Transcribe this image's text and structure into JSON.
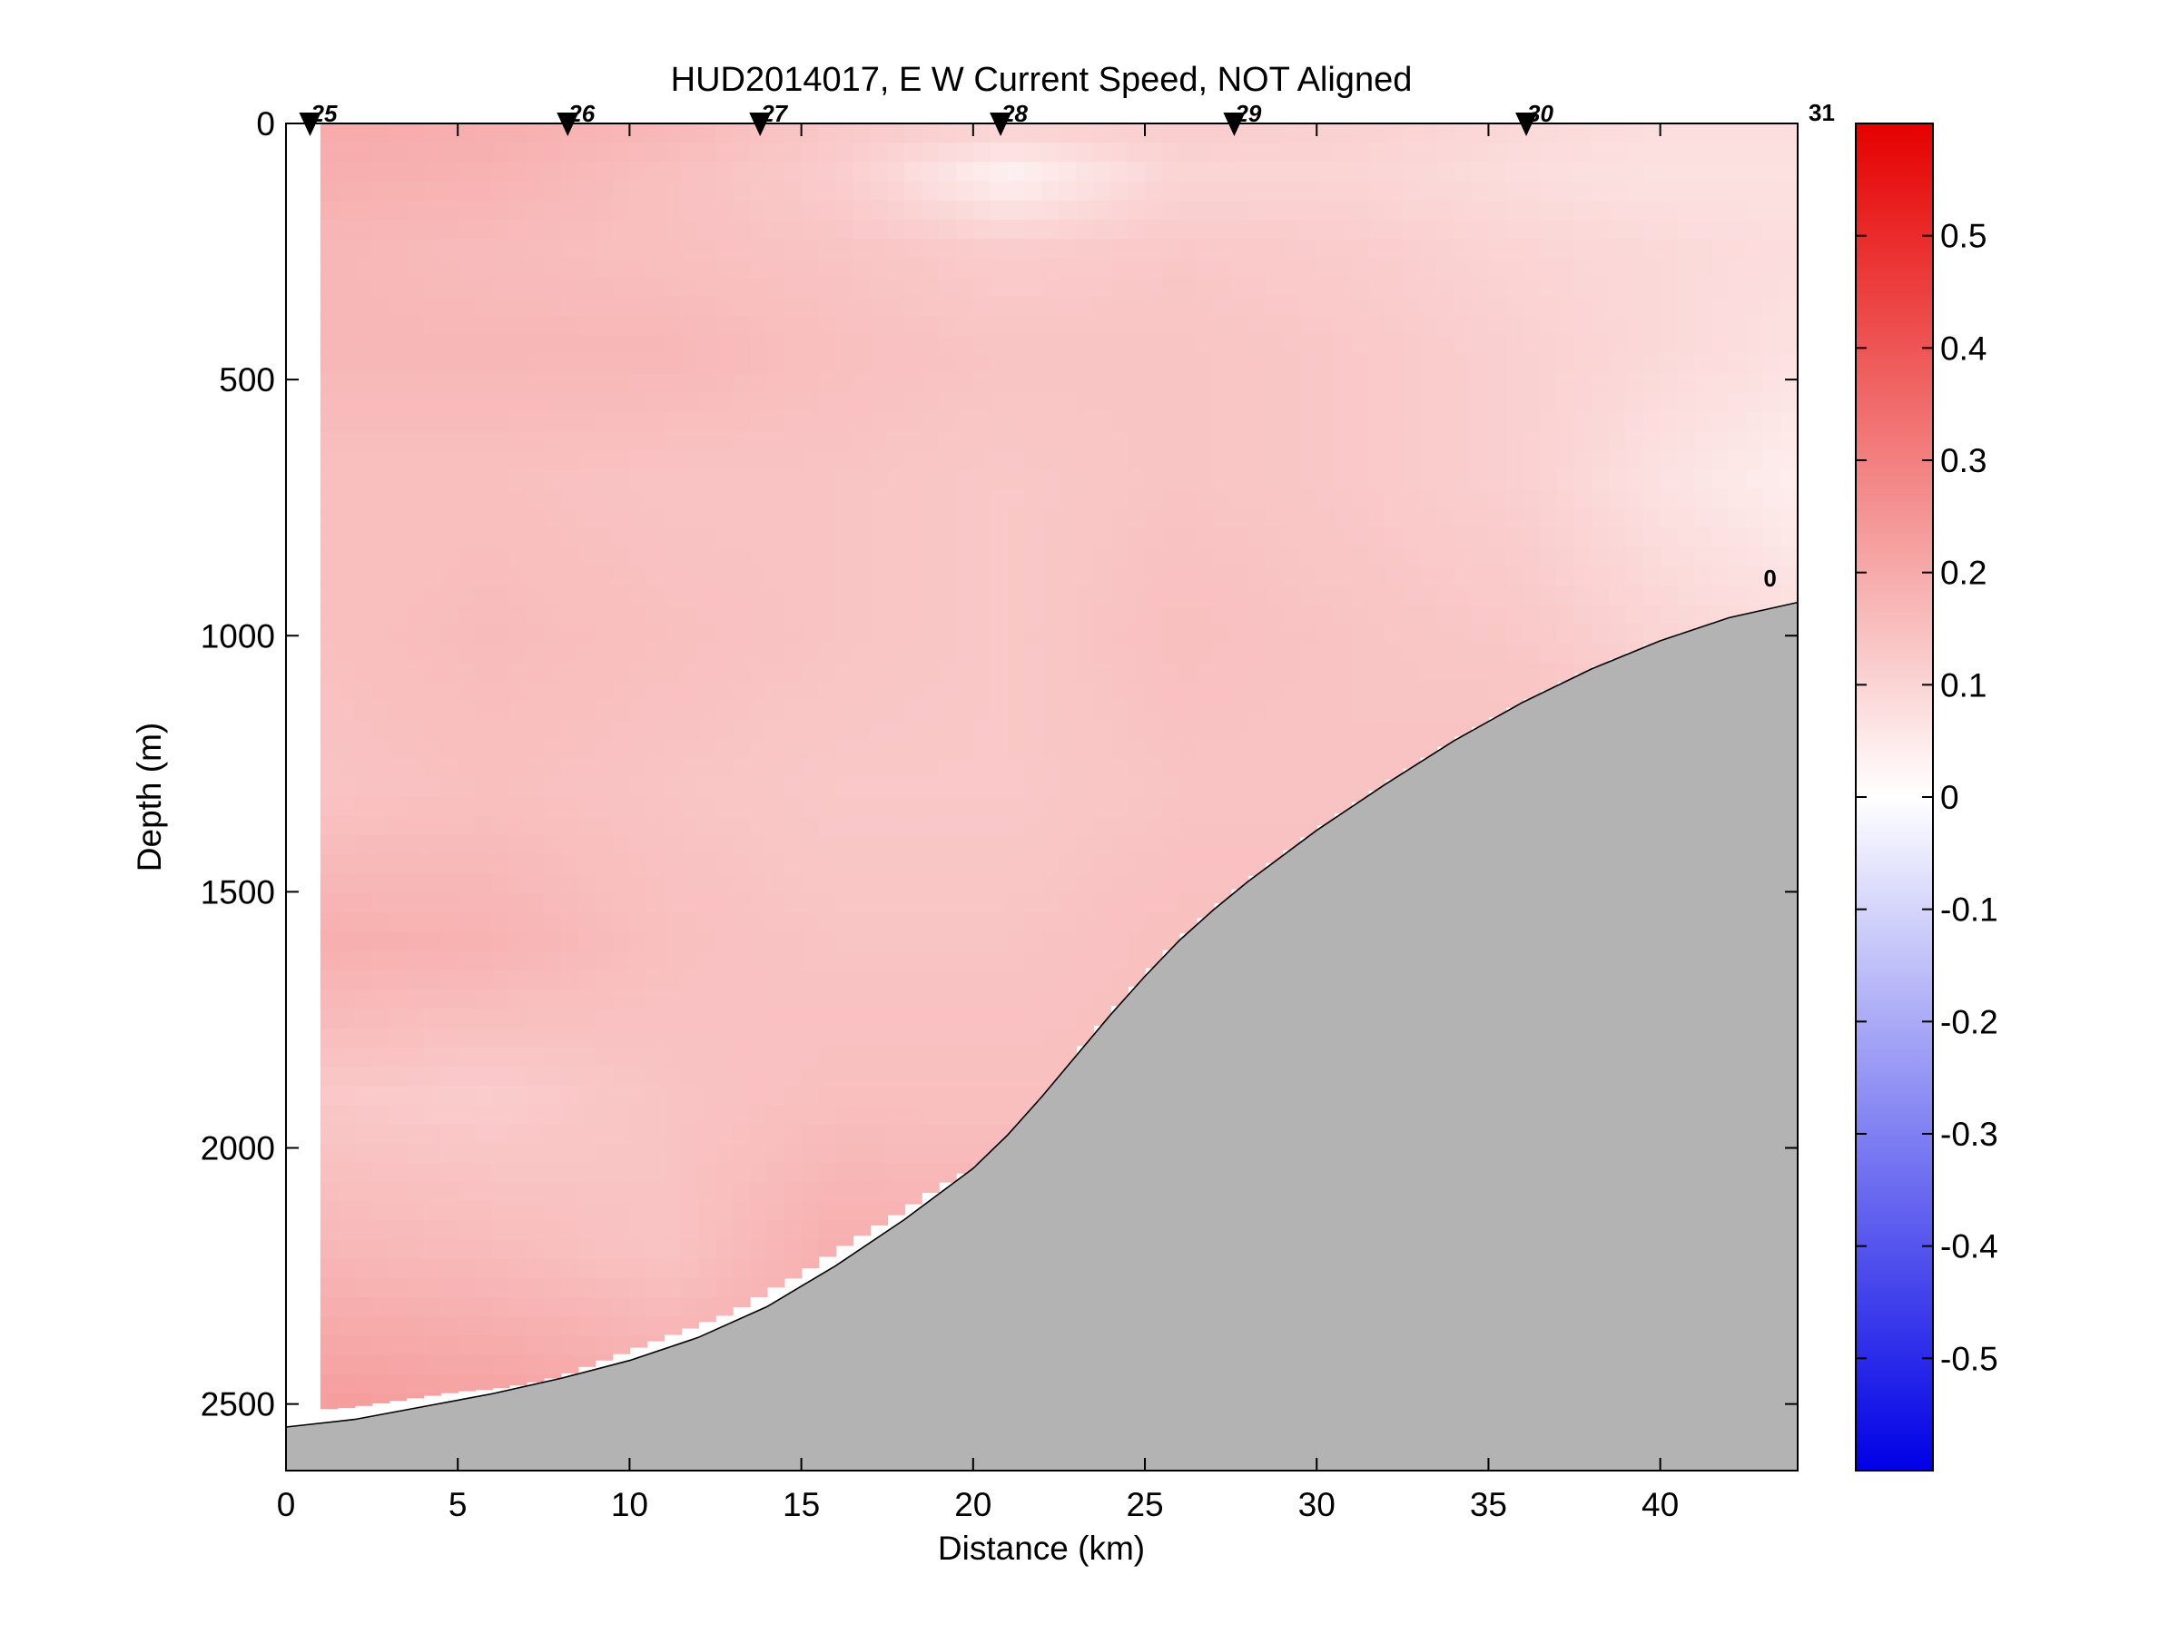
{
  "chart_data": {
    "type": "heatmap",
    "title": "HUD2014017, E W Current Speed, NOT Aligned",
    "xlabel": "Distance (km)",
    "ylabel": "Depth (m)",
    "xlim": [
      0,
      44
    ],
    "ylim": [
      2630,
      0
    ],
    "x_ticks": [
      0,
      5,
      10,
      15,
      20,
      25,
      30,
      35,
      40
    ],
    "y_ticks": [
      0,
      500,
      1000,
      1500,
      2000,
      2500
    ],
    "colorbar": {
      "range": [
        -0.6,
        0.6
      ],
      "ticks": [
        -0.5,
        -0.4,
        -0.3,
        -0.2,
        -0.1,
        0,
        0.1,
        0.2,
        0.3,
        0.4,
        0.5
      ],
      "tick_labels": [
        "-0.5",
        "-0.4",
        "-0.3",
        "-0.2",
        "-0.1",
        "0",
        "0.1",
        "0.2",
        "0.3",
        "0.4",
        "0.5"
      ],
      "colormap": "blue-white-red",
      "low_color": "#0000e6",
      "mid_color": "#ffffff",
      "high_color": "#e60000"
    },
    "stations": [
      {
        "label": "25",
        "x": 0.7
      },
      {
        "label": "26",
        "x": 8.2
      },
      {
        "label": "27",
        "x": 13.8
      },
      {
        "label": "28",
        "x": 20.8
      },
      {
        "label": "29",
        "x": 27.6
      },
      {
        "label": "30",
        "x": 36.1
      }
    ],
    "end_labels": [
      {
        "label": "31",
        "x": 44,
        "depth": 0
      },
      {
        "label": "0",
        "x": 43.6,
        "depth": 890
      }
    ],
    "bathymetry": {
      "distance": [
        0,
        2,
        4,
        6,
        8,
        10,
        12,
        14,
        16,
        18,
        20,
        21,
        22,
        23,
        24,
        25,
        26,
        27,
        28,
        30,
        32,
        34,
        36,
        38,
        40,
        42,
        44
      ],
      "depth": [
        2545,
        2530,
        2505,
        2480,
        2450,
        2415,
        2370,
        2310,
        2230,
        2140,
        2040,
        1975,
        1900,
        1820,
        1740,
        1665,
        1595,
        1535,
        1480,
        1380,
        1290,
        1205,
        1130,
        1065,
        1010,
        965,
        935
      ]
    },
    "data_bottom": {
      "distance": [
        1.0,
        2.0,
        3.0,
        4.0,
        5.0,
        6.0,
        7.0,
        8.0,
        9.0,
        10.0,
        11.0,
        12.0,
        13.0,
        14.0,
        15.0,
        16.0,
        17.0,
        18.0,
        19.0,
        20.0,
        21.0,
        22.0,
        23.0
      ],
      "depth": [
        2510,
        2505,
        2495,
        2485,
        2475,
        2470,
        2460,
        2445,
        2420,
        2395,
        2370,
        2345,
        2320,
        2280,
        2245,
        2200,
        2160,
        2120,
        2075,
        2040,
        2005,
        1970,
        1935
      ]
    },
    "field": {
      "distance": [
        1,
        6,
        11,
        16,
        21,
        26,
        31,
        36,
        40,
        44
      ],
      "depth": [
        0,
        100,
        250,
        450,
        700,
        1000,
        1300,
        1600,
        1900,
        2200,
        2500
      ],
      "values": [
        [
          0.2,
          0.19,
          0.17,
          0.13,
          0.11,
          0.12,
          0.11,
          0.09,
          0.08,
          0.08
        ],
        [
          0.19,
          0.18,
          0.15,
          0.12,
          0.03,
          0.1,
          0.1,
          0.08,
          0.07,
          0.07
        ],
        [
          0.17,
          0.16,
          0.15,
          0.14,
          0.12,
          0.13,
          0.12,
          0.1,
          0.09,
          0.08
        ],
        [
          0.17,
          0.17,
          0.17,
          0.15,
          0.14,
          0.14,
          0.13,
          0.11,
          0.09,
          0.07
        ],
        [
          0.15,
          0.15,
          0.14,
          0.14,
          0.13,
          0.14,
          0.13,
          0.11,
          0.07,
          0.04
        ],
        [
          0.15,
          0.16,
          0.15,
          0.14,
          0.13,
          0.15,
          0.14,
          0.13,
          0.1,
          0.08
        ],
        [
          0.14,
          0.15,
          0.14,
          0.13,
          0.13,
          0.14,
          0.14,
          0.15,
          0.16,
          0.16
        ],
        [
          0.19,
          0.18,
          0.15,
          0.14,
          0.14,
          0.15,
          0.15,
          0.15,
          0.15,
          0.15
        ],
        [
          0.13,
          0.12,
          0.14,
          0.15,
          0.15,
          0.15,
          0.15,
          0.15,
          0.15,
          0.15
        ],
        [
          0.17,
          0.16,
          0.14,
          0.19,
          0.18,
          0.18,
          0.18,
          0.18,
          0.18,
          0.18
        ],
        [
          0.23,
          0.22,
          0.2,
          0.19,
          0.19,
          0.19,
          0.19,
          0.19,
          0.19,
          0.19
        ]
      ]
    }
  }
}
